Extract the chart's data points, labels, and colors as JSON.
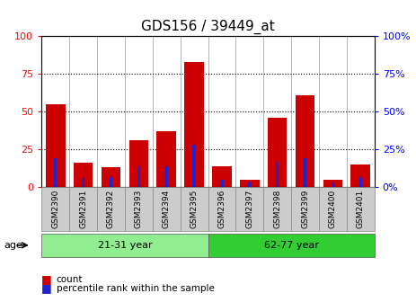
{
  "title": "GDS156 / 39449_at",
  "samples": [
    "GSM2390",
    "GSM2391",
    "GSM2392",
    "GSM2393",
    "GSM2394",
    "GSM2395",
    "GSM2396",
    "GSM2397",
    "GSM2398",
    "GSM2399",
    "GSM2400",
    "GSM2401"
  ],
  "count_values": [
    55,
    16,
    13,
    31,
    37,
    83,
    14,
    5,
    46,
    61,
    5,
    15
  ],
  "percentile_values": [
    19,
    6,
    7,
    14,
    14,
    28,
    5,
    3,
    17,
    19,
    3,
    7
  ],
  "groups": [
    {
      "label": "21-31 year",
      "start": 0,
      "end": 6,
      "color": "#90EE90"
    },
    {
      "label": "62-77 year",
      "start": 6,
      "end": 12,
      "color": "#32CD32"
    }
  ],
  "ylim": [
    0,
    100
  ],
  "yticks": [
    0,
    25,
    50,
    75,
    100
  ],
  "bar_color_red": "#CC0000",
  "bar_color_blue": "#2222CC",
  "title_fontsize": 11,
  "tick_fontsize": 6.5,
  "age_label": "age",
  "background_color": "#ffffff",
  "plot_bg_color": "#ffffff",
  "separator_color": "#aaaaaa",
  "grid_color": "#000000",
  "xtick_bg": "#cccccc",
  "legend_red_label": "count",
  "legend_blue_label": "percentile rank within the sample"
}
